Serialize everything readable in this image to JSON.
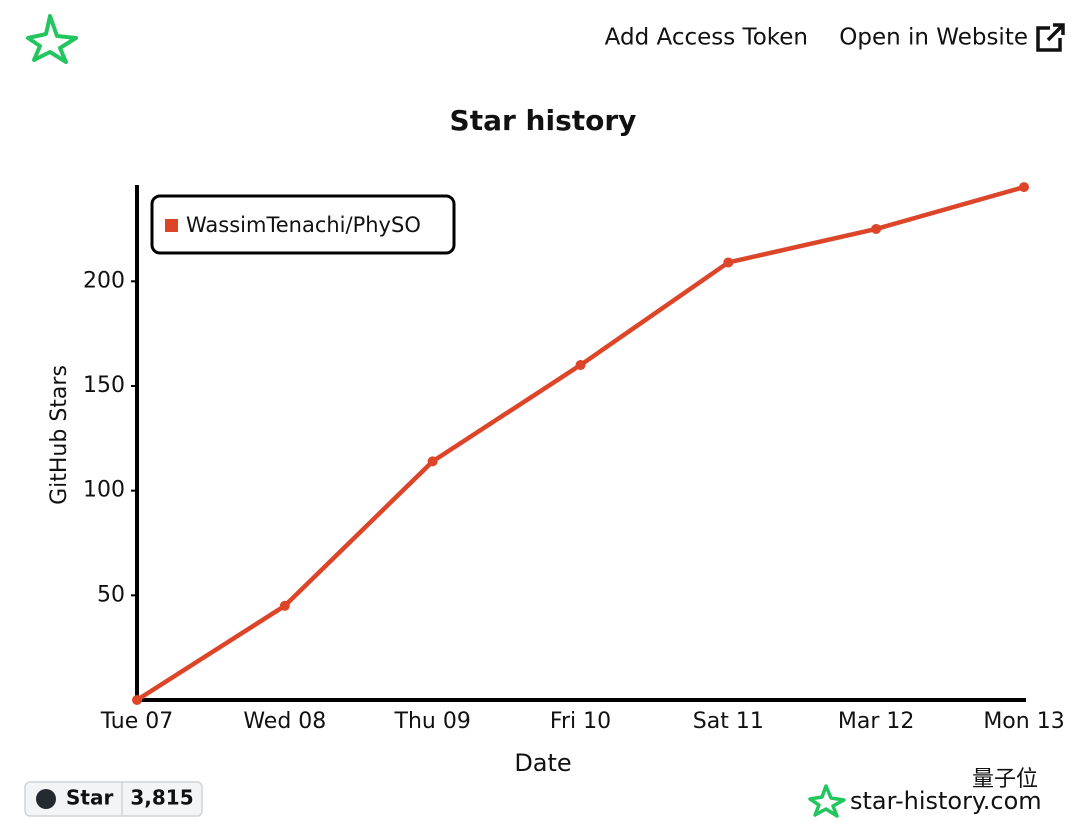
{
  "header": {
    "add_token": "Add Access Token",
    "open_website": "Open in Website"
  },
  "chart_data": {
    "type": "line",
    "title": "Star history",
    "x_label": "Date",
    "y_label": "GitHub Stars",
    "categories": [
      "Tue 07",
      "Wed 08",
      "Thu 09",
      "Fri 10",
      "Sat 11",
      "Mar 12",
      "Mon 13"
    ],
    "series": [
      {
        "name": "WassimTenachi/PhySO",
        "color": "#dd4528",
        "values": [
          0,
          45,
          114,
          160,
          209,
          225,
          245
        ]
      }
    ],
    "ylim": [
      0,
      246
    ],
    "yticks": [
      50,
      100,
      150,
      200
    ],
    "grid": false,
    "legend": "top-left"
  },
  "footer": {
    "star_button": "Star",
    "star_count": "3,815",
    "watermark": "量子位",
    "brand": "star-history.com"
  }
}
